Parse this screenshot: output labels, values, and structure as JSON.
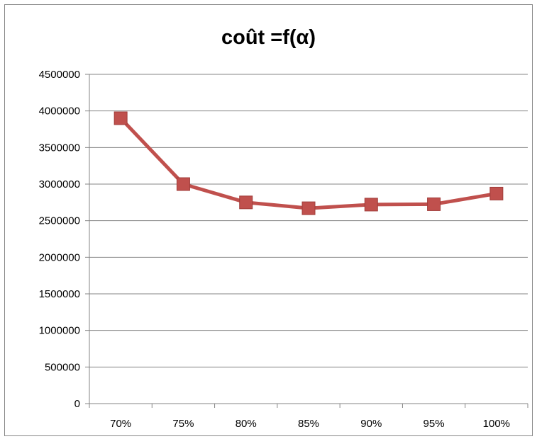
{
  "chart_data": {
    "type": "line",
    "title": "coût =f(α)",
    "categories": [
      "70%",
      "75%",
      "80%",
      "85%",
      "90%",
      "95%",
      "100%"
    ],
    "series": [
      {
        "values": [
          3900000,
          3000000,
          2750000,
          2670000,
          2720000,
          2725000,
          2870000
        ]
      }
    ],
    "y_ticks": [
      "0",
      "500000",
      "1000000",
      "1500000",
      "2000000",
      "2500000",
      "3000000",
      "3500000",
      "4000000",
      "4500000"
    ],
    "ylim": [
      0,
      4500000
    ],
    "grid": true,
    "legend": "none",
    "colors": {
      "series": "#C0504D",
      "grid": "#868686",
      "axis": "#868686"
    },
    "marker": "square"
  }
}
